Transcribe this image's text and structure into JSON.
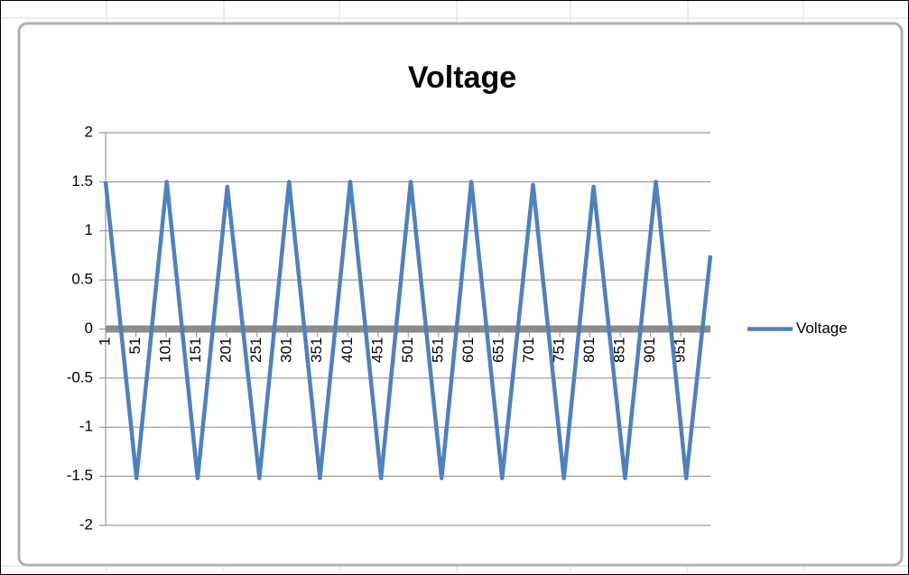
{
  "chart_data": {
    "type": "line",
    "title": "Voltage",
    "x": [
      1,
      52,
      102,
      153,
      202,
      255,
      304,
      355,
      405,
      456,
      505,
      556,
      605,
      656,
      707,
      758,
      807,
      859,
      910,
      960,
      1000
    ],
    "series": [
      {
        "name": "Voltage",
        "color": "#4f81bd",
        "values": [
          1.5,
          -1.52,
          1.5,
          -1.52,
          1.45,
          -1.52,
          1.5,
          -1.52,
          1.5,
          -1.52,
          1.5,
          -1.52,
          1.5,
          -1.52,
          1.47,
          -1.52,
          1.45,
          -1.52,
          1.5,
          -1.52,
          0.75
        ]
      }
    ],
    "xlim": [
      1,
      1000
    ],
    "xticks": [
      1,
      51,
      101,
      151,
      201,
      251,
      301,
      351,
      401,
      451,
      501,
      551,
      601,
      651,
      701,
      751,
      801,
      851,
      901,
      951
    ],
    "ylim": [
      -2,
      2
    ],
    "yticks": [
      2,
      1.5,
      1,
      0.5,
      0,
      -0.5,
      -1,
      -1.5,
      -2
    ],
    "grid": true,
    "legend": "right"
  }
}
